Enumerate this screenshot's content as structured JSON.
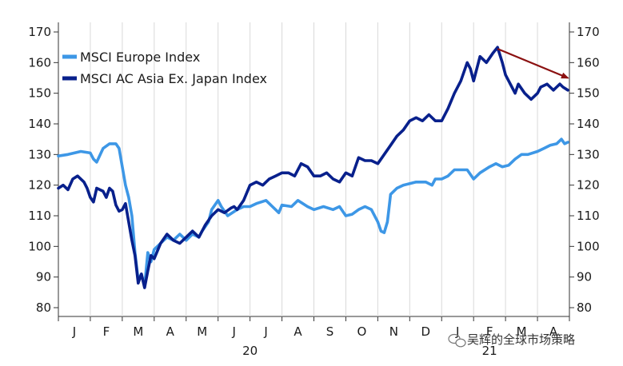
{
  "chart_data": {
    "type": "line",
    "title": "",
    "xlabel": "",
    "ylabel": "",
    "ylim": [
      80,
      170
    ],
    "yticks": [
      80,
      90,
      100,
      110,
      120,
      130,
      140,
      150,
      160,
      170
    ],
    "ytick_labels": [
      "80",
      "90",
      "100",
      "110",
      "120",
      "130",
      "140",
      "150",
      "160",
      "170"
    ],
    "xlim": [
      0,
      16
    ],
    "x_month_labels": [
      "J",
      "F",
      "M",
      "A",
      "M",
      "J",
      "J",
      "A",
      "S",
      "O",
      "N",
      "D",
      "J",
      "F",
      "M",
      "A"
    ],
    "x_year_labels": [
      {
        "label": "20",
        "x": 6.0
      },
      {
        "label": "21",
        "x": 13.5
      }
    ],
    "grid": "vertical month lines",
    "legend_position": "top-left",
    "series": [
      {
        "name": "MSCI Europe Index",
        "color": "#3d97e6",
        "points": [
          [
            0.0,
            129.5
          ],
          [
            0.3,
            130
          ],
          [
            0.5,
            130.5
          ],
          [
            0.7,
            131
          ],
          [
            1.0,
            130.5
          ],
          [
            1.1,
            128.5
          ],
          [
            1.2,
            127.5
          ],
          [
            1.4,
            132
          ],
          [
            1.6,
            133.5
          ],
          [
            1.8,
            133.5
          ],
          [
            1.9,
            132
          ],
          [
            2.0,
            126
          ],
          [
            2.1,
            120
          ],
          [
            2.2,
            116
          ],
          [
            2.3,
            110
          ],
          [
            2.4,
            98
          ],
          [
            2.5,
            89
          ],
          [
            2.6,
            91
          ],
          [
            2.7,
            87
          ],
          [
            2.8,
            98
          ],
          [
            2.9,
            95
          ],
          [
            3.0,
            99
          ],
          [
            3.2,
            101
          ],
          [
            3.4,
            103
          ],
          [
            3.6,
            102
          ],
          [
            3.8,
            104
          ],
          [
            4.0,
            102
          ],
          [
            4.2,
            104
          ],
          [
            4.4,
            103
          ],
          [
            4.5,
            105
          ],
          [
            4.7,
            108
          ],
          [
            4.8,
            112
          ],
          [
            5.0,
            115
          ],
          [
            5.1,
            113
          ],
          [
            5.3,
            110
          ],
          [
            5.6,
            112
          ],
          [
            5.8,
            113
          ],
          [
            6.0,
            113
          ],
          [
            6.2,
            114
          ],
          [
            6.5,
            115
          ],
          [
            6.7,
            113
          ],
          [
            6.9,
            111
          ],
          [
            7.0,
            113.5
          ],
          [
            7.3,
            113
          ],
          [
            7.5,
            115
          ],
          [
            7.8,
            113
          ],
          [
            8.0,
            112
          ],
          [
            8.3,
            113
          ],
          [
            8.6,
            112
          ],
          [
            8.8,
            113
          ],
          [
            9.0,
            110
          ],
          [
            9.2,
            110.5
          ],
          [
            9.4,
            112
          ],
          [
            9.6,
            113
          ],
          [
            9.8,
            112
          ],
          [
            10.0,
            108
          ],
          [
            10.1,
            105
          ],
          [
            10.2,
            104.5
          ],
          [
            10.3,
            108
          ],
          [
            10.4,
            117
          ],
          [
            10.6,
            119
          ],
          [
            10.8,
            120
          ],
          [
            11.0,
            120.5
          ],
          [
            11.2,
            121
          ],
          [
            11.5,
            121
          ],
          [
            11.7,
            120
          ],
          [
            11.8,
            122
          ],
          [
            12.0,
            122
          ],
          [
            12.2,
            123
          ],
          [
            12.4,
            125
          ],
          [
            12.6,
            125
          ],
          [
            12.8,
            125
          ],
          [
            13.0,
            122
          ],
          [
            13.2,
            124
          ],
          [
            13.5,
            126
          ],
          [
            13.7,
            127
          ],
          [
            13.9,
            126
          ],
          [
            14.1,
            126.5
          ],
          [
            14.3,
            128.5
          ],
          [
            14.5,
            130
          ],
          [
            14.7,
            130
          ],
          [
            15.0,
            131
          ],
          [
            15.2,
            132
          ],
          [
            15.4,
            133
          ],
          [
            15.6,
            133.5
          ],
          [
            15.75,
            135
          ],
          [
            15.85,
            133.5
          ],
          [
            15.95,
            134
          ]
        ]
      },
      {
        "name": "MSCI AC Asia Ex. Japan Index",
        "color": "#08208c",
        "points": [
          [
            0.0,
            119
          ],
          [
            0.15,
            120
          ],
          [
            0.3,
            118.5
          ],
          [
            0.45,
            122
          ],
          [
            0.6,
            123
          ],
          [
            0.8,
            121
          ],
          [
            0.9,
            119
          ],
          [
            1.0,
            116
          ],
          [
            1.1,
            114.5
          ],
          [
            1.2,
            119
          ],
          [
            1.4,
            118
          ],
          [
            1.5,
            116
          ],
          [
            1.6,
            119
          ],
          [
            1.7,
            118
          ],
          [
            1.8,
            113.5
          ],
          [
            1.9,
            111.5
          ],
          [
            2.0,
            112
          ],
          [
            2.1,
            114
          ],
          [
            2.2,
            108
          ],
          [
            2.3,
            102
          ],
          [
            2.4,
            97
          ],
          [
            2.5,
            88
          ],
          [
            2.6,
            91
          ],
          [
            2.7,
            86.5
          ],
          [
            2.8,
            92
          ],
          [
            2.9,
            97
          ],
          [
            3.0,
            96
          ],
          [
            3.2,
            101
          ],
          [
            3.4,
            104
          ],
          [
            3.6,
            102
          ],
          [
            3.8,
            101
          ],
          [
            4.0,
            103
          ],
          [
            4.2,
            105
          ],
          [
            4.4,
            103
          ],
          [
            4.6,
            107
          ],
          [
            4.8,
            110
          ],
          [
            5.0,
            112
          ],
          [
            5.2,
            111
          ],
          [
            5.4,
            112.5
          ],
          [
            5.5,
            113
          ],
          [
            5.6,
            112
          ],
          [
            5.8,
            115
          ],
          [
            6.0,
            120
          ],
          [
            6.2,
            121
          ],
          [
            6.4,
            120
          ],
          [
            6.6,
            122
          ],
          [
            6.8,
            123
          ],
          [
            7.0,
            124
          ],
          [
            7.2,
            124
          ],
          [
            7.4,
            123
          ],
          [
            7.6,
            127
          ],
          [
            7.8,
            126
          ],
          [
            8.0,
            123
          ],
          [
            8.2,
            123
          ],
          [
            8.4,
            124
          ],
          [
            8.6,
            122
          ],
          [
            8.8,
            121
          ],
          [
            9.0,
            124
          ],
          [
            9.2,
            123
          ],
          [
            9.4,
            129
          ],
          [
            9.6,
            128
          ],
          [
            9.8,
            128
          ],
          [
            10.0,
            127
          ],
          [
            10.2,
            130
          ],
          [
            10.4,
            133
          ],
          [
            10.6,
            136
          ],
          [
            10.8,
            138
          ],
          [
            11.0,
            141
          ],
          [
            11.2,
            142
          ],
          [
            11.4,
            141
          ],
          [
            11.6,
            143
          ],
          [
            11.8,
            141
          ],
          [
            12.0,
            141
          ],
          [
            12.2,
            145
          ],
          [
            12.4,
            150
          ],
          [
            12.6,
            154
          ],
          [
            12.8,
            160
          ],
          [
            12.9,
            158
          ],
          [
            13.0,
            154
          ],
          [
            13.2,
            162
          ],
          [
            13.4,
            160
          ],
          [
            13.6,
            163
          ],
          [
            13.75,
            165
          ],
          [
            13.9,
            160
          ],
          [
            14.0,
            156
          ],
          [
            14.2,
            152
          ],
          [
            14.3,
            150
          ],
          [
            14.4,
            153
          ],
          [
            14.6,
            150
          ],
          [
            14.8,
            148
          ],
          [
            15.0,
            150
          ],
          [
            15.1,
            152
          ],
          [
            15.3,
            153
          ],
          [
            15.4,
            152
          ],
          [
            15.5,
            151
          ],
          [
            15.6,
            152
          ],
          [
            15.7,
            153
          ],
          [
            15.8,
            152
          ],
          [
            15.95,
            151
          ]
        ]
      }
    ],
    "annotations": [
      {
        "type": "arrow",
        "color": "#8b1111",
        "from": [
          13.75,
          164.5
        ],
        "to": [
          15.95,
          155
        ]
      }
    ]
  },
  "watermark": {
    "text": "吴辉的全球市场策略"
  }
}
